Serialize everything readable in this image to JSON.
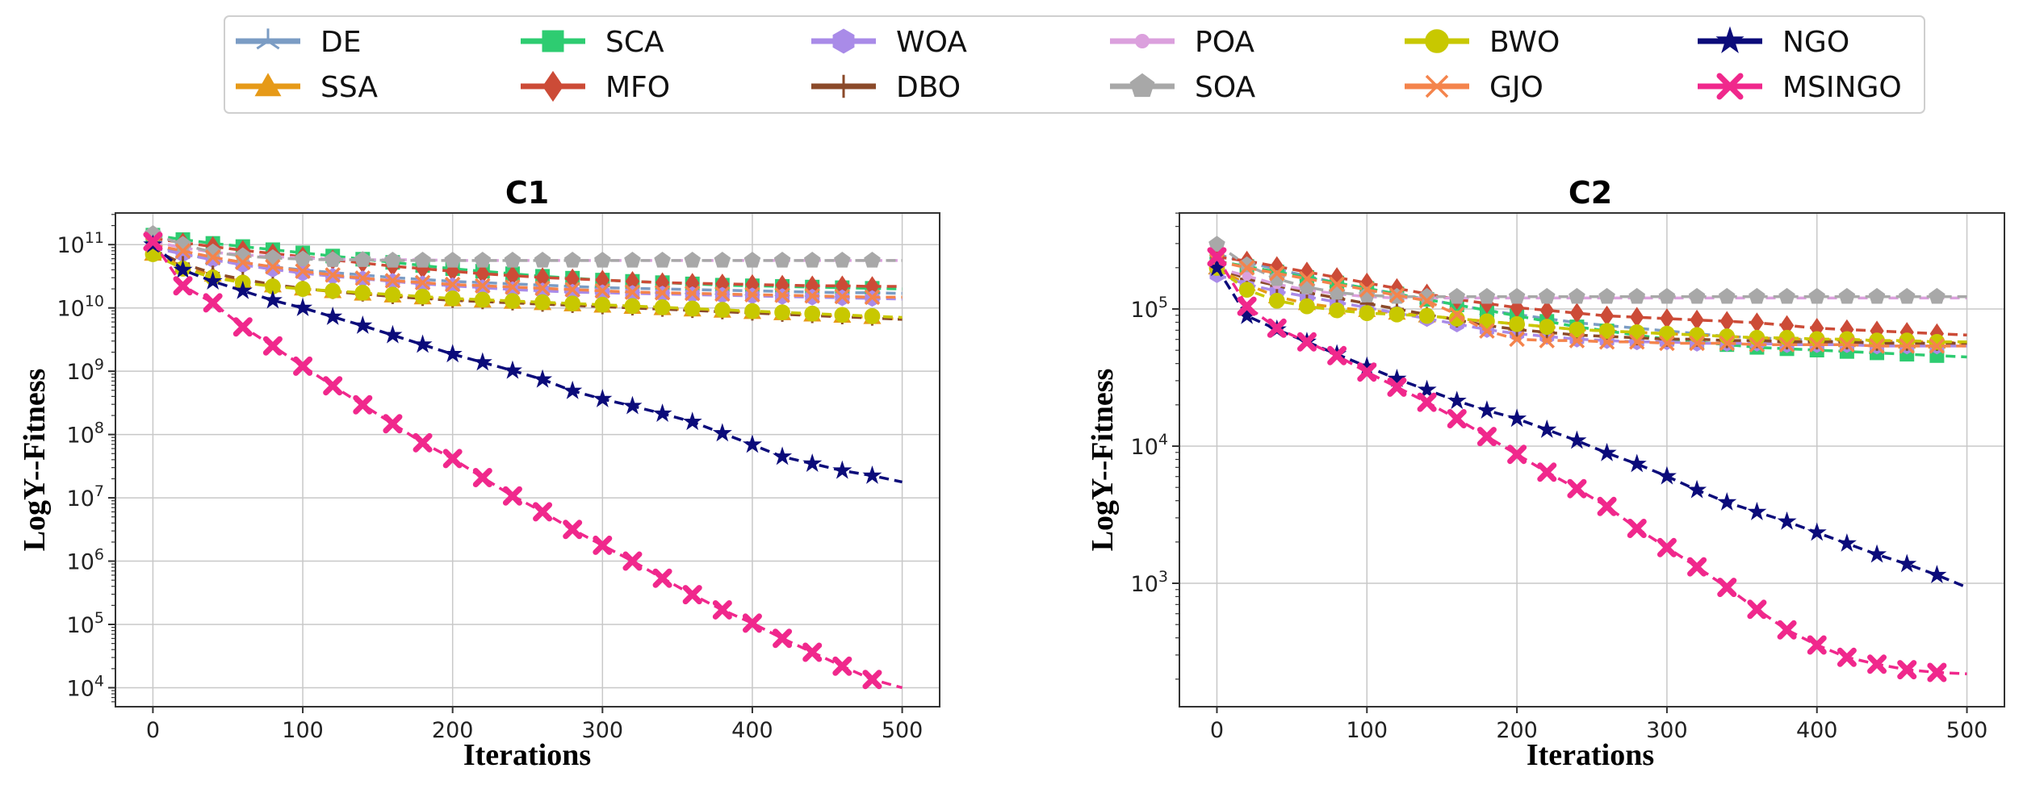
{
  "legend": {
    "entries": [
      {
        "name": "DE",
        "color": "#7b9cc4",
        "marker": "tri_down"
      },
      {
        "name": "SSA",
        "color": "#e69a18",
        "marker": "triangle_up"
      },
      {
        "name": "SCA",
        "color": "#2ecc71",
        "marker": "square"
      },
      {
        "name": "MFO",
        "color": "#cc4b37",
        "marker": "diamond"
      },
      {
        "name": "WOA",
        "color": "#a98be8",
        "marker": "hexagon"
      },
      {
        "name": "DBO",
        "color": "#8b4a2a",
        "marker": "plus"
      },
      {
        "name": "POA",
        "color": "#dba0dd",
        "marker": "circle_small"
      },
      {
        "name": "SOA",
        "color": "#a8a8a8",
        "marker": "pentagon"
      },
      {
        "name": "BWO",
        "color": "#c8c800",
        "marker": "circle"
      },
      {
        "name": "GJO",
        "color": "#f4844c",
        "marker": "x"
      },
      {
        "name": "NGO",
        "color": "#0b0b7a",
        "marker": "star"
      },
      {
        "name": "MSINGO",
        "color": "#f0288c",
        "marker": "x_filled"
      }
    ]
  },
  "chart_data": [
    {
      "type": "line",
      "title": "C1",
      "xlabel": "Iterations",
      "ylabel": "LogY--Fitness",
      "yscale": "log",
      "xlim": [
        -25,
        525
      ],
      "ylim_log10": [
        3.7,
        11.5
      ],
      "xticks": [
        0,
        100,
        200,
        300,
        400,
        500
      ],
      "yticks_exp": [
        4,
        5,
        6,
        7,
        8,
        9,
        10,
        11
      ],
      "grid": true,
      "x": [
        0,
        20,
        40,
        60,
        80,
        100,
        120,
        140,
        160,
        180,
        200,
        220,
        240,
        260,
        280,
        300,
        320,
        340,
        360,
        380,
        400,
        420,
        440,
        460,
        480,
        500
      ],
      "series": [
        {
          "name": "DE",
          "log10_values": [
            11.0,
            10.86,
            10.76,
            10.7,
            10.65,
            10.6,
            10.56,
            10.52,
            10.48,
            10.45,
            10.42,
            10.4,
            10.38,
            10.36,
            10.34,
            10.32,
            10.31,
            10.3,
            10.29,
            10.28,
            10.27,
            10.26,
            10.25,
            10.24,
            10.24,
            10.23
          ]
        },
        {
          "name": "SSA",
          "log10_values": [
            10.85,
            10.66,
            10.52,
            10.42,
            10.35,
            10.3,
            10.26,
            10.22,
            10.19,
            10.16,
            10.13,
            10.11,
            10.09,
            10.07,
            10.05,
            10.03,
            10.01,
            9.99,
            9.97,
            9.95,
            9.93,
            9.91,
            9.89,
            9.87,
            9.85,
            9.82
          ]
        },
        {
          "name": "SCA",
          "log10_values": [
            11.15,
            11.08,
            11.02,
            10.97,
            10.92,
            10.87,
            10.82,
            10.77,
            10.72,
            10.67,
            10.62,
            10.58,
            10.54,
            10.5,
            10.47,
            10.44,
            10.42,
            10.4,
            10.38,
            10.36,
            10.35,
            10.34,
            10.33,
            10.32,
            10.31,
            10.3
          ]
        },
        {
          "name": "MFO",
          "log10_values": [
            11.1,
            11.03,
            10.97,
            10.91,
            10.86,
            10.81,
            10.76,
            10.71,
            10.66,
            10.62,
            10.58,
            10.54,
            10.51,
            10.48,
            10.46,
            10.44,
            10.42,
            10.4,
            10.39,
            10.38,
            10.37,
            10.36,
            10.35,
            10.35,
            10.34,
            10.34
          ]
        },
        {
          "name": "WOA",
          "log10_values": [
            10.95,
            10.85,
            10.76,
            10.68,
            10.61,
            10.55,
            10.5,
            10.46,
            10.42,
            10.38,
            10.35,
            10.32,
            10.29,
            10.27,
            10.25,
            10.24,
            10.23,
            10.22,
            10.21,
            10.2,
            10.19,
            10.18,
            10.17,
            10.16,
            10.15,
            10.14
          ]
        },
        {
          "name": "DBO",
          "log10_values": [
            10.92,
            10.7,
            10.55,
            10.45,
            10.37,
            10.31,
            10.26,
            10.22,
            10.18,
            10.15,
            10.12,
            10.1,
            10.08,
            10.06,
            10.04,
            10.02,
            10.0,
            9.98,
            9.96,
            9.94,
            9.92,
            9.9,
            9.88,
            9.86,
            9.84,
            9.82
          ]
        },
        {
          "name": "POA",
          "log10_values": [
            11.05,
            10.95,
            10.88,
            10.84,
            10.81,
            10.79,
            10.77,
            10.76,
            10.76,
            10.76,
            10.75,
            10.75,
            10.75,
            10.75,
            10.75,
            10.75,
            10.75,
            10.75,
            10.75,
            10.75,
            10.75,
            10.75,
            10.75,
            10.75,
            10.75,
            10.75
          ]
        },
        {
          "name": "SOA",
          "log10_values": [
            11.17,
            11.0,
            10.88,
            10.82,
            10.79,
            10.77,
            10.76,
            10.76,
            10.75,
            10.75,
            10.75,
            10.75,
            10.75,
            10.75,
            10.75,
            10.75,
            10.75,
            10.75,
            10.75,
            10.75,
            10.75,
            10.75,
            10.75,
            10.75,
            10.75,
            10.75
          ]
        },
        {
          "name": "BWO",
          "log10_values": [
            10.85,
            10.62,
            10.48,
            10.4,
            10.34,
            10.3,
            10.27,
            10.24,
            10.21,
            10.18,
            10.15,
            10.13,
            10.11,
            10.09,
            10.07,
            10.05,
            10.03,
            10.01,
            9.99,
            9.97,
            9.95,
            9.93,
            9.91,
            9.89,
            9.87,
            9.85
          ]
        },
        {
          "name": "GJO",
          "log10_values": [
            11.0,
            10.9,
            10.8,
            10.72,
            10.65,
            10.58,
            10.52,
            10.47,
            10.43,
            10.4,
            10.37,
            10.35,
            10.33,
            10.31,
            10.29,
            10.27,
            10.25,
            10.24,
            10.23,
            10.22,
            10.21,
            10.2,
            10.19,
            10.18,
            10.17,
            10.17
          ]
        },
        {
          "name": "NGO",
          "log10_values": [
            11.0,
            10.6,
            10.42,
            10.27,
            10.12,
            10.0,
            9.86,
            9.72,
            9.57,
            9.42,
            9.27,
            9.14,
            9.01,
            8.87,
            8.69,
            8.56,
            8.45,
            8.33,
            8.2,
            8.02,
            7.84,
            7.65,
            7.54,
            7.43,
            7.35,
            7.25
          ]
        },
        {
          "name": "MSINGO",
          "log10_values": [
            11.05,
            10.35,
            10.08,
            9.7,
            9.4,
            9.08,
            8.77,
            8.47,
            8.17,
            7.87,
            7.62,
            7.32,
            7.03,
            6.78,
            6.5,
            6.25,
            6.0,
            5.73,
            5.47,
            5.23,
            5.02,
            4.78,
            4.56,
            4.34,
            4.13,
            4.0
          ]
        }
      ]
    },
    {
      "type": "line",
      "title": "C2",
      "xlabel": "Iterations",
      "ylabel": "LogY--Fitness",
      "yscale": "log",
      "xlim": [
        -25,
        525
      ],
      "ylim_log10": [
        2.1,
        5.7
      ],
      "xticks": [
        0,
        100,
        200,
        300,
        400,
        500
      ],
      "yticks_exp": [
        3,
        4,
        5
      ],
      "grid": true,
      "x": [
        0,
        20,
        40,
        60,
        80,
        100,
        120,
        140,
        160,
        180,
        200,
        220,
        240,
        260,
        280,
        300,
        320,
        340,
        360,
        380,
        400,
        420,
        440,
        460,
        480,
        500
      ],
      "series": [
        {
          "name": "DE",
          "log10_values": [
            5.4,
            5.34,
            5.29,
            5.24,
            5.19,
            5.15,
            5.11,
            5.07,
            5.03,
            4.99,
            4.96,
            4.93,
            4.9,
            4.88,
            4.86,
            4.84,
            4.82,
            4.8,
            4.79,
            4.78,
            4.77,
            4.76,
            4.76,
            4.75,
            4.75,
            4.75
          ]
        },
        {
          "name": "SSA",
          "log10_values": [
            5.3,
            5.18,
            5.09,
            5.04,
            5.01,
            4.99,
            4.97,
            4.95,
            4.93,
            4.91,
            4.89,
            4.87,
            4.85,
            4.84,
            4.83,
            4.82,
            4.81,
            4.8,
            4.79,
            4.78,
            4.78,
            4.77,
            4.77,
            4.76,
            4.76,
            4.75
          ]
        },
        {
          "name": "SCA",
          "log10_values": [
            5.35,
            5.31,
            5.27,
            5.23,
            5.19,
            5.15,
            5.11,
            5.07,
            5.03,
            4.99,
            4.95,
            4.91,
            4.87,
            4.84,
            4.81,
            4.78,
            4.76,
            4.74,
            4.72,
            4.71,
            4.7,
            4.69,
            4.68,
            4.67,
            4.66,
            4.65
          ]
        },
        {
          "name": "MFO",
          "log10_values": [
            5.38,
            5.35,
            5.31,
            5.27,
            5.23,
            5.19,
            5.15,
            5.11,
            5.07,
            5.04,
            5.01,
            4.99,
            4.97,
            4.95,
            4.94,
            4.93,
            4.92,
            4.91,
            4.9,
            4.88,
            4.86,
            4.85,
            4.84,
            4.83,
            4.82,
            4.81
          ]
        },
        {
          "name": "WOA",
          "log10_values": [
            5.25,
            5.18,
            5.13,
            5.09,
            5.05,
            5.01,
            4.97,
            4.93,
            4.89,
            4.85,
            4.82,
            4.8,
            4.78,
            4.77,
            4.76,
            4.76,
            4.75,
            4.75,
            4.75,
            4.74,
            4.74,
            4.74,
            4.73,
            4.73,
            4.73,
            4.73
          ]
        },
        {
          "name": "DBO",
          "log10_values": [
            5.3,
            5.22,
            5.17,
            5.12,
            5.08,
            5.04,
            5.0,
            4.96,
            4.92,
            4.88,
            4.85,
            4.83,
            4.81,
            4.8,
            4.79,
            4.78,
            4.78,
            4.77,
            4.77,
            4.76,
            4.76,
            4.76,
            4.75,
            4.75,
            4.75,
            4.75
          ]
        },
        {
          "name": "POA",
          "log10_values": [
            5.3,
            5.24,
            5.18,
            5.14,
            5.11,
            5.09,
            5.08,
            5.08,
            5.08,
            5.08,
            5.08,
            5.08,
            5.08,
            5.08,
            5.08,
            5.08,
            5.08,
            5.08,
            5.08,
            5.08,
            5.08,
            5.08,
            5.08,
            5.08,
            5.08,
            5.08
          ]
        },
        {
          "name": "SOA",
          "log10_values": [
            5.47,
            5.32,
            5.22,
            5.16,
            5.12,
            5.1,
            5.09,
            5.09,
            5.09,
            5.09,
            5.09,
            5.09,
            5.09,
            5.09,
            5.09,
            5.09,
            5.09,
            5.09,
            5.09,
            5.09,
            5.09,
            5.09,
            5.09,
            5.09,
            5.09,
            5.09
          ]
        },
        {
          "name": "BWO",
          "log10_values": [
            5.3,
            5.14,
            5.06,
            5.02,
            4.99,
            4.97,
            4.96,
            4.95,
            4.93,
            4.91,
            4.89,
            4.87,
            4.85,
            4.84,
            4.83,
            4.82,
            4.81,
            4.8,
            4.79,
            4.79,
            4.78,
            4.78,
            4.77,
            4.77,
            4.76,
            4.76
          ]
        },
        {
          "name": "GJO",
          "log10_values": [
            5.35,
            5.3,
            5.26,
            5.22,
            5.18,
            5.14,
            5.1,
            5.06,
            4.96,
            4.84,
            4.78,
            4.77,
            4.77,
            4.76,
            4.76,
            4.75,
            4.75,
            4.75,
            4.74,
            4.74,
            4.74,
            4.74,
            4.73,
            4.73,
            4.73,
            4.73
          ]
        },
        {
          "name": "NGO",
          "log10_values": [
            5.3,
            4.95,
            4.85,
            4.76,
            4.67,
            4.58,
            4.49,
            4.41,
            4.33,
            4.26,
            4.2,
            4.12,
            4.04,
            3.95,
            3.87,
            3.78,
            3.68,
            3.59,
            3.52,
            3.45,
            3.37,
            3.29,
            3.21,
            3.14,
            3.06,
            2.97
          ]
        },
        {
          "name": "MSINGO",
          "log10_values": [
            5.38,
            5.02,
            4.86,
            4.76,
            4.66,
            4.54,
            4.43,
            4.32,
            4.2,
            4.07,
            3.94,
            3.81,
            3.69,
            3.56,
            3.4,
            3.26,
            3.12,
            2.97,
            2.81,
            2.66,
            2.55,
            2.46,
            2.41,
            2.37,
            2.35,
            2.34
          ]
        }
      ]
    }
  ]
}
